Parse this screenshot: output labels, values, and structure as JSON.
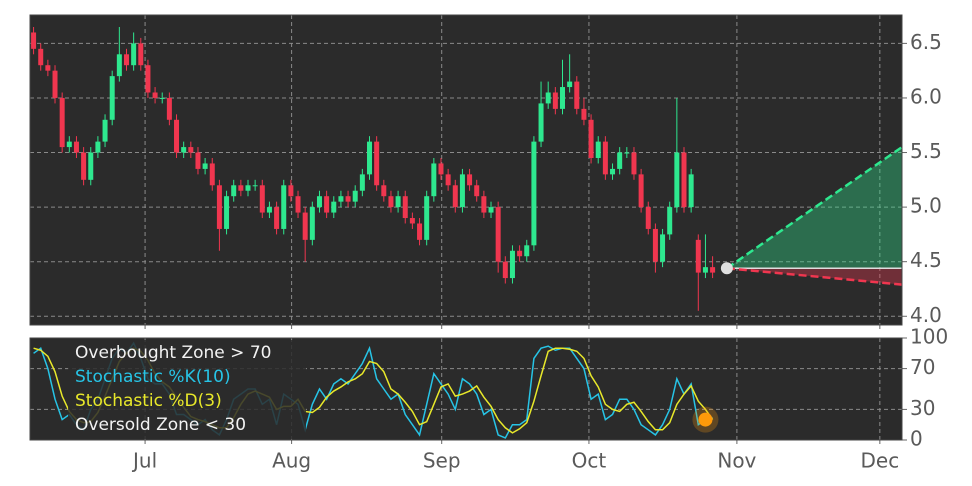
{
  "chart_data": [
    {
      "type": "candlestick",
      "xlim": [
        0,
        122
      ],
      "xticks": [
        {
          "value": 16.1,
          "label": "Jul"
        },
        {
          "value": 36.6,
          "label": "Aug"
        },
        {
          "value": 57.6,
          "label": "Sep"
        },
        {
          "value": 78.2,
          "label": "Oct"
        },
        {
          "value": 98.9,
          "label": "Nov"
        },
        {
          "value": 118.9,
          "label": "Dec"
        }
      ],
      "ylim": [
        3.92,
        6.76
      ],
      "yticks": [
        {
          "value": 4.0,
          "label": "4.0"
        },
        {
          "value": 4.5,
          "label": "4.5"
        },
        {
          "value": 5.0,
          "label": "5.0"
        },
        {
          "value": 5.5,
          "label": "5.5"
        },
        {
          "value": 6.0,
          "label": "6.0"
        },
        {
          "value": 6.5,
          "label": "6.5"
        }
      ],
      "grid": true,
      "up_color": "#2ee88f",
      "down_color": "#f0364f",
      "open": [
        6.6,
        6.45,
        6.3,
        6.25,
        6.0,
        5.55,
        5.6,
        5.5,
        5.25,
        5.5,
        5.6,
        5.8,
        6.2,
        6.4,
        6.3,
        6.5,
        6.3,
        6.05,
        6.0,
        6.0,
        5.8,
        5.5,
        5.55,
        5.5,
        5.35,
        5.4,
        5.2,
        4.8,
        5.1,
        5.2,
        5.15,
        5.2,
        5.2,
        4.95,
        5.0,
        4.8,
        5.2,
        5.1,
        4.95,
        4.7,
        5.0,
        5.1,
        4.95,
        5.05,
        5.1,
        5.05,
        5.15,
        5.3,
        5.6,
        5.2,
        5.1,
        5.0,
        5.1,
        4.9,
        4.85,
        4.7,
        5.1,
        5.4,
        5.3,
        5.2,
        5.0,
        5.3,
        5.2,
        5.1,
        4.95,
        5.0,
        4.5,
        4.35,
        4.6,
        4.55,
        4.65,
        5.6,
        5.95,
        6.05,
        5.9,
        6.1,
        6.15,
        5.9,
        5.8,
        5.45,
        5.6,
        5.3,
        5.35,
        5.5,
        5.5,
        5.3,
        5.0,
        4.8,
        4.5,
        4.75,
        5.0,
        5.5,
        5.0,
        4.7,
        4.4,
        4.45
      ],
      "high": [
        6.65,
        6.5,
        6.35,
        6.3,
        6.05,
        5.65,
        5.65,
        5.55,
        5.55,
        5.65,
        5.85,
        6.25,
        6.65,
        6.45,
        6.6,
        6.55,
        6.35,
        6.1,
        6.05,
        6.05,
        5.85,
        5.6,
        5.6,
        5.55,
        5.45,
        5.45,
        5.25,
        5.15,
        5.25,
        5.25,
        5.25,
        5.25,
        5.25,
        5.05,
        5.05,
        5.25,
        5.25,
        5.15,
        5.0,
        5.05,
        5.15,
        5.15,
        5.1,
        5.15,
        5.15,
        5.2,
        5.35,
        5.65,
        5.65,
        5.25,
        5.15,
        5.15,
        5.15,
        4.95,
        4.9,
        5.15,
        5.45,
        5.45,
        5.35,
        5.25,
        5.35,
        5.35,
        5.25,
        5.15,
        5.05,
        5.05,
        4.55,
        4.65,
        4.65,
        4.7,
        5.65,
        6.15,
        6.15,
        6.1,
        6.35,
        6.4,
        6.2,
        6.0,
        5.85,
        5.65,
        5.65,
        5.4,
        5.55,
        5.55,
        5.55,
        5.35,
        5.05,
        4.85,
        4.8,
        5.05,
        6.0,
        5.55,
        5.35,
        4.75,
        4.75,
        4.55
      ],
      "low": [
        6.4,
        6.25,
        6.2,
        5.95,
        5.5,
        5.5,
        5.45,
        5.2,
        5.2,
        5.45,
        5.55,
        5.75,
        6.15,
        6.25,
        6.25,
        6.25,
        6.0,
        5.95,
        5.95,
        5.75,
        5.45,
        5.45,
        5.45,
        5.3,
        5.3,
        5.15,
        4.6,
        4.75,
        5.05,
        5.1,
        5.1,
        5.15,
        4.9,
        4.9,
        4.75,
        4.75,
        5.05,
        4.9,
        4.5,
        4.65,
        4.95,
        4.9,
        4.9,
        5.0,
        5.0,
        5.0,
        5.1,
        5.25,
        5.15,
        5.05,
        4.95,
        4.95,
        4.85,
        4.8,
        4.65,
        4.65,
        5.05,
        5.25,
        5.15,
        4.95,
        4.95,
        5.15,
        5.05,
        4.9,
        4.9,
        4.4,
        4.3,
        4.3,
        4.5,
        4.5,
        4.6,
        5.55,
        5.9,
        5.85,
        5.85,
        6.05,
        5.85,
        5.75,
        5.4,
        5.4,
        5.25,
        5.25,
        5.3,
        5.45,
        5.25,
        4.95,
        4.75,
        4.4,
        4.45,
        4.7,
        4.95,
        4.95,
        4.95,
        4.05,
        4.35,
        4.35
      ],
      "close": [
        6.45,
        6.3,
        6.25,
        6.0,
        5.55,
        5.6,
        5.5,
        5.25,
        5.5,
        5.6,
        5.8,
        6.2,
        6.4,
        6.3,
        6.5,
        6.3,
        6.05,
        6.0,
        6.0,
        5.8,
        5.5,
        5.55,
        5.5,
        5.35,
        5.4,
        5.2,
        4.8,
        5.1,
        5.2,
        5.15,
        5.2,
        5.2,
        4.95,
        5.0,
        4.8,
        5.2,
        5.1,
        4.95,
        4.7,
        5.0,
        5.1,
        4.95,
        5.05,
        5.1,
        5.05,
        5.15,
        5.3,
        5.6,
        5.2,
        5.1,
        5.0,
        5.1,
        4.9,
        4.85,
        4.7,
        5.1,
        5.4,
        5.3,
        5.2,
        5.0,
        5.3,
        5.2,
        5.1,
        4.95,
        5.0,
        4.5,
        4.35,
        4.6,
        4.55,
        4.65,
        5.6,
        5.95,
        6.05,
        5.9,
        6.1,
        6.15,
        5.9,
        5.8,
        5.45,
        5.6,
        5.3,
        5.35,
        5.5,
        5.5,
        5.3,
        5.0,
        4.8,
        4.5,
        4.75,
        5.0,
        5.5,
        5.0,
        5.3,
        4.4,
        4.45,
        4.4
      ],
      "forecast": {
        "x": [
          97.5,
          122
        ],
        "upper": [
          4.44,
          5.55
        ],
        "lower": [
          4.44,
          4.29
        ],
        "upper_color": "#2ee88f",
        "lower_color": "#f0364f"
      }
    },
    {
      "type": "line",
      "xlim": [
        0,
        122
      ],
      "xticks": [
        {
          "value": 16.1,
          "label": "Jul"
        },
        {
          "value": 36.6,
          "label": "Aug"
        },
        {
          "value": 57.6,
          "label": "Sep"
        },
        {
          "value": 78.2,
          "label": "Oct"
        },
        {
          "value": 98.9,
          "label": "Nov"
        },
        {
          "value": 118.9,
          "label": "Dec"
        }
      ],
      "ylim": [
        0,
        100
      ],
      "yticks": [
        0,
        30,
        70,
        100
      ],
      "grid": true,
      "legend": [
        "Overbought Zone > 70",
        "Oversold Zone < 30"
      ],
      "series": [
        {
          "name": "Stochastic %K(10)",
          "color": "#27c4e6",
          "values": [
            85,
            90,
            70,
            40,
            20,
            25,
            15,
            10,
            30,
            40,
            60,
            80,
            90,
            85,
            95,
            80,
            60,
            55,
            55,
            45,
            25,
            25,
            20,
            15,
            20,
            10,
            5,
            20,
            40,
            45,
            50,
            50,
            35,
            40,
            15,
            45,
            40,
            35,
            10,
            35,
            50,
            40,
            55,
            60,
            55,
            65,
            75,
            90,
            60,
            50,
            40,
            45,
            25,
            15,
            5,
            35,
            65,
            55,
            45,
            30,
            60,
            55,
            45,
            25,
            30,
            5,
            2,
            15,
            15,
            20,
            80,
            90,
            92,
            88,
            90,
            90,
            80,
            70,
            40,
            45,
            20,
            25,
            40,
            40,
            30,
            15,
            10,
            5,
            15,
            30,
            60,
            45,
            55,
            15,
            20,
            22
          ]
        },
        {
          "name": "Stochastic %D(3)",
          "color": "#e8e82a",
          "values": [
            90,
            88,
            82,
            67,
            43,
            28,
            20,
            17,
            18,
            27,
            43,
            60,
            77,
            85,
            90,
            87,
            78,
            65,
            57,
            52,
            42,
            32,
            23,
            20,
            18,
            15,
            12,
            12,
            22,
            35,
            45,
            48,
            45,
            42,
            30,
            33,
            33,
            40,
            28,
            27,
            32,
            42,
            48,
            52,
            57,
            60,
            65,
            77,
            75,
            67,
            50,
            45,
            37,
            28,
            15,
            18,
            35,
            52,
            55,
            43,
            45,
            48,
            53,
            42,
            33,
            20,
            12,
            7,
            11,
            17,
            38,
            63,
            87,
            90,
            90,
            89,
            87,
            80,
            63,
            52,
            35,
            30,
            28,
            35,
            37,
            28,
            18,
            10,
            10,
            17,
            35,
            45,
            53,
            38,
            30,
            20
          ]
        }
      ],
      "signal": {
        "x": 94,
        "value": 20,
        "color": "#ff9a0a"
      }
    }
  ]
}
